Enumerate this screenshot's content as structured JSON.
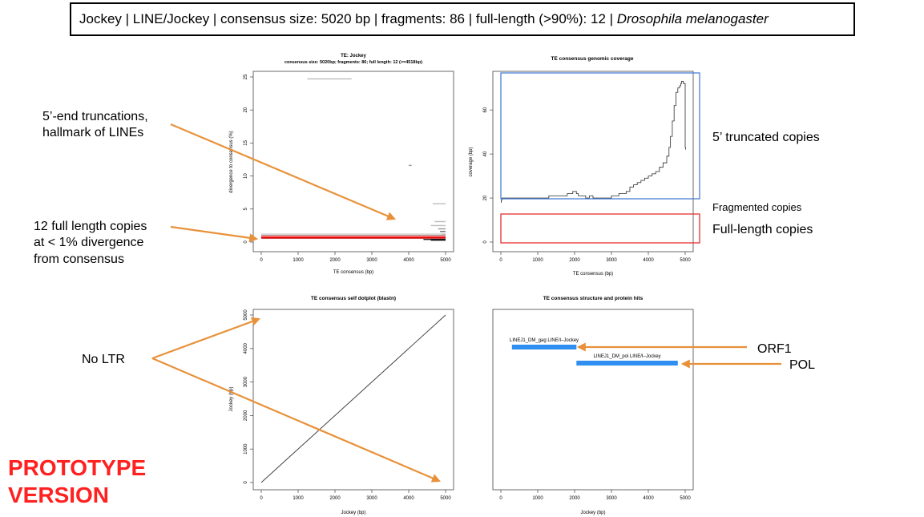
{
  "header": {
    "prefix": "Jockey | LINE/Jockey | consensus size: 5020 bp | fragments: 86 | full-length (>90%): 12 | ",
    "species": "Drosophila melanogaster"
  },
  "annotations": {
    "truncations_line1": "5’-end truncations,",
    "truncations_line2": "hallmark of LINEs",
    "fulllength_line1": "12 full length copies",
    "fulllength_line2": "at < 1% divergence",
    "fulllength_line3": "from consensus",
    "no_ltr": "No LTR",
    "truncated_copies": "5’ truncated copies",
    "fragmented_copies": "Fragmented copies",
    "fulllength_copies": "Full-length copies",
    "orf1": "ORF1",
    "pol": "POL",
    "prototype_line1": "PROTOTYPE",
    "prototype_line2": "VERSION"
  },
  "colors": {
    "arrow": "#e8913a",
    "blue_box": "#4a7fd4",
    "red_box": "#e53030",
    "hits": "#2f8ff0",
    "prototype": "#ff2020"
  },
  "chart_data": [
    {
      "type": "scatter",
      "title": "TE: Jockey",
      "subtitle": "consensus size: 5020bp; fragments: 86; full length: 12 (>=4518bp)",
      "xlabel": "TE consensus (bp)",
      "ylabel": "divergence to consensus (%)",
      "xlim": [
        0,
        5000
      ],
      "ylim": [
        0,
        25
      ],
      "xticks": [
        "0",
        "1000",
        "2000",
        "3000",
        "4000",
        "5000"
      ],
      "yticks": [
        "0",
        "5",
        "10",
        "15",
        "20",
        "25"
      ],
      "segments": [
        {
          "x": [
            1250,
            2450
          ],
          "y": 24.7,
          "color": "#bbbbbb"
        },
        {
          "x": [
            4000,
            4080
          ],
          "y": 11.6,
          "color": "#999999"
        },
        {
          "x": [
            4650,
            5000
          ],
          "y": 5.8,
          "color": "#bbbbbb"
        },
        {
          "x": [
            4700,
            5000
          ],
          "y": 3.1,
          "color": "#bbbbbb"
        },
        {
          "x": [
            4600,
            5000
          ],
          "y": 2.5,
          "color": "#bbbbbb"
        },
        {
          "x": [
            4800,
            5000
          ],
          "y": 2.0,
          "color": "#999999"
        },
        {
          "x": [
            4850,
            5000
          ],
          "y": 1.6,
          "color": "#666666"
        },
        {
          "x": [
            4900,
            5000
          ],
          "y": 1.2,
          "color": "#333333"
        },
        {
          "x": [
            0,
            5000
          ],
          "y": 1.2,
          "color": "#cccccc"
        },
        {
          "x": [
            0,
            5000
          ],
          "y": 1.0,
          "color": "#aaaaaa"
        },
        {
          "x": [
            0,
            5000
          ],
          "y": 0.9,
          "color": "#ff6a6a"
        },
        {
          "x": [
            0,
            5000
          ],
          "y": 0.7,
          "color": "#ee0000"
        },
        {
          "x": [
            0,
            5000
          ],
          "y": 0.6,
          "color": "#cc0000"
        },
        {
          "x": [
            4400,
            5000
          ],
          "y": 0.4,
          "color": "#222222"
        },
        {
          "x": [
            4600,
            5000
          ],
          "y": 0.3,
          "color": "#000000"
        }
      ]
    },
    {
      "type": "line",
      "title": "TE consensus genomic coverage",
      "xlabel": "TE consensus (bp)",
      "ylabel": "coverage (bp)",
      "xlim": [
        0,
        5000
      ],
      "ylim": [
        0,
        75
      ],
      "xticks": [
        "0",
        "1000",
        "2000",
        "3000",
        "4000",
        "5000"
      ],
      "yticks": [
        "0",
        "20",
        "40",
        "60"
      ],
      "x": [
        0,
        10,
        30,
        200,
        1100,
        1300,
        1600,
        1800,
        1900,
        1950,
        2000,
        2050,
        2100,
        2200,
        2300,
        2400,
        2500,
        2700,
        3000,
        3200,
        3400,
        3500,
        3600,
        3700,
        3800,
        3900,
        4000,
        4100,
        4200,
        4300,
        4400,
        4500,
        4560,
        4600,
        4650,
        4700,
        4750,
        4800,
        4850,
        4880,
        4900,
        4950,
        5000,
        5010
      ],
      "y": [
        18,
        19,
        20,
        20,
        20,
        21,
        21,
        22,
        22,
        23,
        23,
        22,
        21,
        21,
        20,
        21,
        20,
        20,
        21,
        22,
        23,
        25,
        26,
        27,
        28,
        29,
        30,
        31,
        32,
        34,
        36,
        39,
        43,
        48,
        55,
        62,
        68,
        70,
        71,
        72,
        73,
        72,
        43,
        42
      ]
    },
    {
      "type": "line",
      "title": "TE consensus self dotplot (blastn)",
      "xlabel": "Jockey (bp)",
      "ylabel": "Jockey (bp)",
      "xlim": [
        0,
        5000
      ],
      "ylim": [
        0,
        5000
      ],
      "xticks": [
        "0",
        "1000",
        "2000",
        "3000",
        "4000",
        "5000"
      ],
      "yticks": [
        "0",
        "1000",
        "2000",
        "3000",
        "4000",
        "5000"
      ],
      "x": [
        0,
        5000
      ],
      "y": [
        0,
        5000
      ]
    },
    {
      "type": "bar",
      "title": "TE consensus structure and protein hits",
      "xlabel": "Jockey (bp)",
      "xlim": [
        0,
        5000
      ],
      "xticks": [
        "0",
        "1000",
        "2000",
        "3000",
        "4000",
        "5000"
      ],
      "hits": [
        {
          "name": "LINEJ1_DM_gag LINE/I–Jockey",
          "start": 300,
          "end": 2050,
          "row": 1
        },
        {
          "name": "LINEJ1_DM_pol LINE/I–Jockey",
          "start": 2050,
          "end": 4800,
          "row": 2
        }
      ]
    }
  ]
}
